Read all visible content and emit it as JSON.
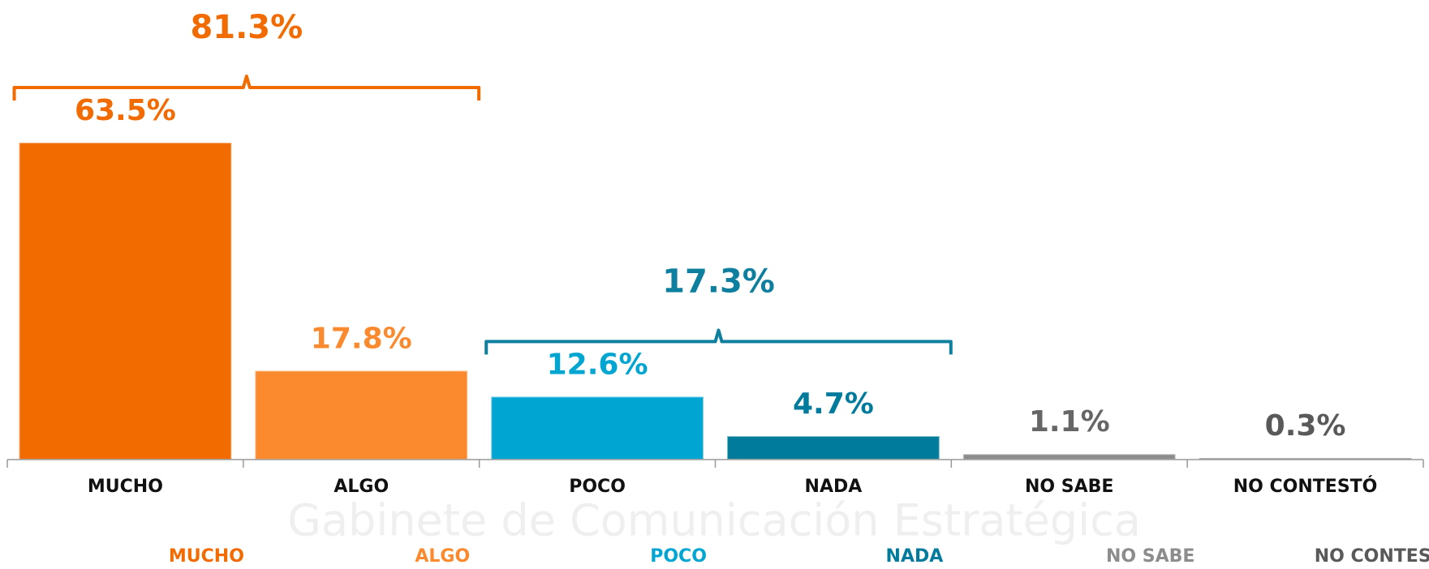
{
  "chart_data": {
    "type": "bar",
    "categories": [
      "MUCHO",
      "ALGO",
      "POCO",
      "NADA",
      "NO SABE",
      "NO CONTESTÓ"
    ],
    "values": [
      63.5,
      17.8,
      12.6,
      4.7,
      1.1,
      0.3
    ],
    "value_labels": [
      "63.5%",
      "17.8%",
      "12.6%",
      "4.7%",
      "1.1%",
      "0.3%"
    ],
    "colors": [
      "#f26b00",
      "#fb8a2e",
      "#00a6d1",
      "#007b9c",
      "#8c8c8c",
      "#595959"
    ],
    "value_label_colors": [
      "#f26b00",
      "#fb8a2e",
      "#00a6d1",
      "#007b9c",
      "#666666",
      "#595959"
    ],
    "groups": [
      {
        "value": 81.3,
        "label": "81.3%",
        "categories": [
          "MUCHO",
          "ALGO"
        ],
        "color": "#f26b00"
      },
      {
        "value": 17.3,
        "label": "17.3%",
        "categories": [
          "POCO",
          "NADA"
        ],
        "color": "#0e7f9e"
      }
    ],
    "legend": [
      "MUCHO",
      "ALGO",
      "POCO",
      "NADA",
      "NO SABE",
      "NO CONTESTÓ"
    ],
    "watermark": "Gabinete de Comunicación Estratégica"
  }
}
